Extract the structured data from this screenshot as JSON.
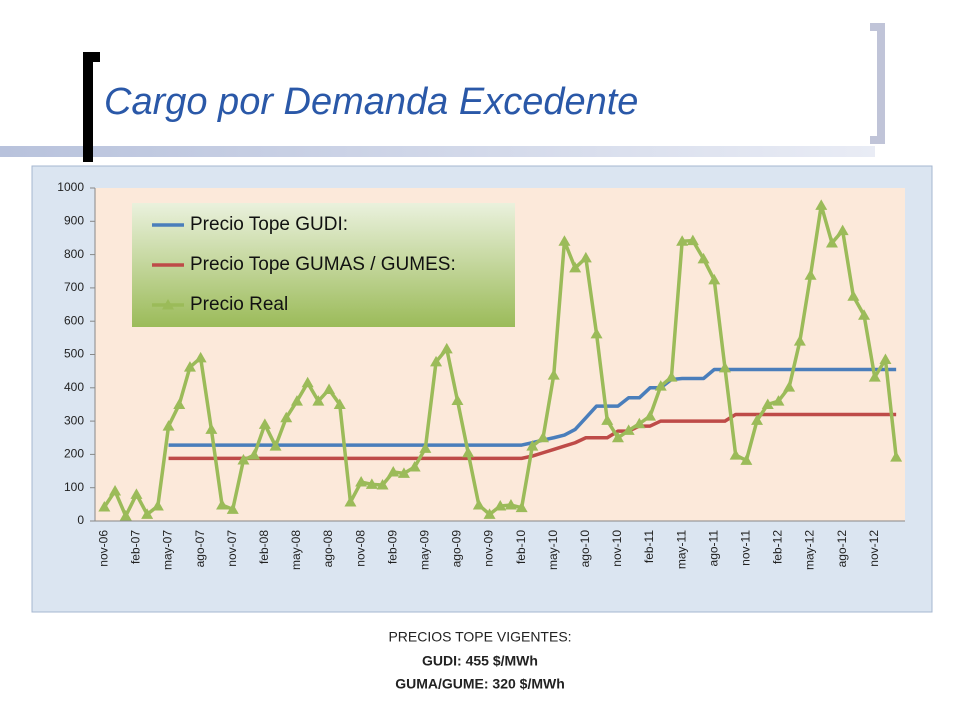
{
  "slide": {
    "title": "Cargo por Demanda Excedente",
    "footer": [
      "PRECIOS TOPE VIGENTES:",
      "GUDI: 455 $/MWh",
      "GUMA/GUME: 320 $/MWh"
    ]
  },
  "chart_data": {
    "type": "line",
    "categories": [
      "nov-06",
      null,
      null,
      "feb-07",
      null,
      null,
      "may-07",
      null,
      null,
      "ago-07",
      null,
      null,
      "nov-07",
      null,
      null,
      "feb-08",
      null,
      null,
      "may-08",
      null,
      null,
      "ago-08",
      null,
      null,
      "nov-08",
      null,
      null,
      "feb-09",
      null,
      null,
      "may-09",
      null,
      null,
      "ago-09",
      null,
      null,
      "nov-09",
      null,
      null,
      "feb-10",
      null,
      null,
      "may-10",
      null,
      null,
      "ago-10",
      null,
      null,
      "nov-10",
      null,
      null,
      "feb-11",
      null,
      null,
      "may-11",
      null,
      null,
      "ago-11",
      null,
      null,
      "nov-11",
      null,
      null,
      "feb-12",
      null,
      null,
      "may-12",
      null,
      null,
      "ago-12",
      null,
      null,
      "nov-12",
      null,
      null
    ],
    "series": [
      {
        "name": "Precio Tope GUDI:",
        "color": "#4a7ebb",
        "marker": false,
        "values": [
          null,
          null,
          null,
          null,
          null,
          null,
          228,
          228,
          228,
          228,
          228,
          228,
          228,
          228,
          228,
          228,
          228,
          228,
          228,
          228,
          228,
          228,
          228,
          228,
          228,
          228,
          228,
          228,
          228,
          228,
          228,
          228,
          228,
          228,
          228,
          228,
          228,
          228,
          228,
          228,
          235,
          243,
          250,
          258,
          275,
          310,
          345,
          345,
          345,
          370,
          370,
          400,
          400,
          425,
          428,
          428,
          428,
          455,
          455,
          455,
          455,
          455,
          455,
          455,
          455,
          455,
          455,
          455,
          455,
          455,
          455,
          455,
          455,
          455,
          455
        ]
      },
      {
        "name": "Precio Tope GUMAS / GUMES:",
        "color": "#be4b48",
        "marker": false,
        "values": [
          null,
          null,
          null,
          null,
          null,
          null,
          188,
          188,
          188,
          188,
          188,
          188,
          188,
          188,
          188,
          188,
          188,
          188,
          188,
          188,
          188,
          188,
          188,
          188,
          188,
          188,
          188,
          188,
          188,
          188,
          188,
          188,
          188,
          188,
          188,
          188,
          188,
          188,
          188,
          188,
          195,
          205,
          215,
          225,
          235,
          250,
          250,
          250,
          270,
          270,
          285,
          285,
          300,
          300,
          300,
          300,
          300,
          300,
          300,
          320,
          320,
          320,
          320,
          320,
          320,
          320,
          320,
          320,
          320,
          320,
          320,
          320,
          320,
          320,
          320
        ]
      },
      {
        "name": "Precio Real",
        "color": "#9bbb59",
        "marker": true,
        "values": [
          42,
          90,
          15,
          80,
          20,
          45,
          285,
          350,
          462,
          490,
          275,
          48,
          35,
          183,
          198,
          290,
          225,
          310,
          360,
          415,
          360,
          395,
          350,
          57,
          117,
          110,
          108,
          147,
          143,
          162,
          218,
          478,
          517,
          362,
          205,
          48,
          20,
          45,
          48,
          40,
          225,
          250,
          438,
          840,
          760,
          790,
          562,
          302,
          250,
          272,
          292,
          315,
          405,
          432,
          840,
          842,
          787,
          724,
          460,
          198,
          182,
          302,
          350,
          360,
          402,
          540,
          738,
          948,
          835,
          872,
          675,
          618,
          432,
          485,
          192
        ]
      }
    ],
    "ylim": [
      0,
      1000
    ],
    "yticks": [
      0,
      100,
      200,
      300,
      400,
      500,
      600,
      700,
      800,
      900,
      1000
    ],
    "grid": false,
    "legend": "upper left"
  }
}
